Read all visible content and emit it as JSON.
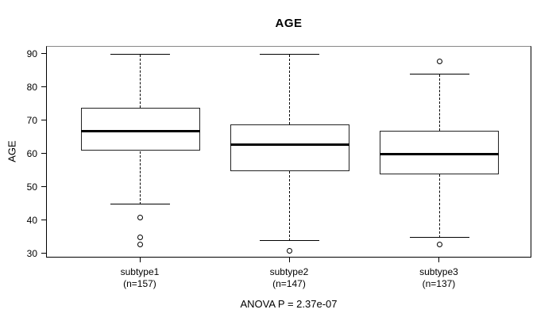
{
  "title": "AGE",
  "y_axis": {
    "label": "AGE"
  },
  "footer": "ANOVA P = 2.37e-07",
  "chart_data": {
    "type": "boxplot",
    "title": "AGE",
    "xlabel": "",
    "ylabel": "AGE",
    "ylim": [
      28,
      92
    ],
    "yticks": [
      30,
      40,
      50,
      60,
      70,
      80,
      90
    ],
    "grid": false,
    "categories": [
      "subtype1",
      "subtype2",
      "subtype3"
    ],
    "category_sublabels": [
      "(n=157)",
      "(n=147)",
      "(n=137)"
    ],
    "annotation": "ANOVA P = 2.37e-07",
    "series": [
      {
        "name": "subtype1",
        "n": 157,
        "whisker_low": 45,
        "q1": 61,
        "median": 67,
        "q3": 74,
        "whisker_high": 90,
        "outliers": [
          41,
          35,
          33
        ]
      },
      {
        "name": "subtype2",
        "n": 147,
        "whisker_low": 34,
        "q1": 55,
        "median": 63,
        "q3": 69,
        "whisker_high": 90,
        "outliers": [
          31
        ]
      },
      {
        "name": "subtype3",
        "n": 137,
        "whisker_low": 35,
        "q1": 54,
        "median": 60,
        "q3": 67,
        "whisker_high": 84,
        "outliers": [
          88,
          33
        ]
      }
    ]
  }
}
